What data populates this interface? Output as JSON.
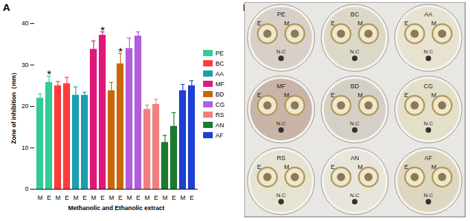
{
  "chart_data": {
    "type": "bar",
    "panel": "A",
    "xlabel": "Methanolic and Ethanolic extract",
    "ylabel": "Zone of inhibition（mm）",
    "categories": [
      "M",
      "E"
    ],
    "series": [
      {
        "name": "PE",
        "color": "#33cc99",
        "values": [
          22,
          25.8
        ],
        "errors": [
          1,
          1.5
        ]
      },
      {
        "name": "BC",
        "color": "#ff3b3b",
        "values": [
          25,
          25.5
        ],
        "errors": [
          1,
          1.5
        ]
      },
      {
        "name": "AA",
        "color": "#1a9fb0",
        "values": [
          22.7,
          22.7
        ],
        "errors": [
          2,
          0.7
        ]
      },
      {
        "name": "MF",
        "color": "#e0177a",
        "values": [
          33.8,
          37.2
        ],
        "errors": [
          2,
          0.8
        ]
      },
      {
        "name": "BD",
        "color": "#c8670a",
        "values": [
          23.8,
          30.3
        ],
        "errors": [
          2,
          2.5
        ]
      },
      {
        "name": "CG",
        "color": "#b45ddc",
        "values": [
          34,
          37
        ],
        "errors": [
          2.5,
          1
        ]
      },
      {
        "name": "RS",
        "color": "#f08080",
        "values": [
          19.3,
          20.5
        ],
        "errors": [
          1,
          1.2
        ]
      },
      {
        "name": "AN",
        "color": "#1a7a2e",
        "values": [
          11.3,
          15.2
        ],
        "errors": [
          1.7,
          3.3
        ]
      },
      {
        "name": "AF",
        "color": "#1e3fd6",
        "values": [
          23.8,
          25
        ],
        "errors": [
          1.5,
          1.2
        ]
      }
    ],
    "ylim": [
      0,
      40
    ],
    "yticks": [
      0,
      10,
      20,
      30,
      40
    ],
    "legend": "right",
    "annotations": [
      {
        "series": "PE",
        "category": "E",
        "text": "*"
      },
      {
        "series": "MF",
        "category": "E",
        "text": "*"
      },
      {
        "series": "BD",
        "category": "E",
        "text": "*"
      }
    ]
  },
  "plates": {
    "panel": "B",
    "items": [
      {
        "label": "PE",
        "disks": [
          "E",
          "M"
        ],
        "control": "N.C"
      },
      {
        "label": "BC",
        "disks": [
          "E",
          "M"
        ],
        "control": "N.C"
      },
      {
        "label": "AA",
        "disks": [
          "E",
          "M"
        ],
        "control": "N.C"
      },
      {
        "label": "MF",
        "disks": [
          "E",
          "M"
        ],
        "control": "N.C"
      },
      {
        "label": "BD",
        "disks": [
          "E",
          "M"
        ],
        "control": "N.C"
      },
      {
        "label": "CG",
        "disks": [
          "E",
          "M"
        ],
        "control": "N.C"
      },
      {
        "label": "RS",
        "disks": [
          "E",
          "M"
        ],
        "control": "N.C"
      },
      {
        "label": "AN",
        "disks": [
          "E",
          "M"
        ],
        "control": "N.C"
      },
      {
        "label": "AF",
        "disks": [
          "E",
          "M"
        ],
        "control": "N.C"
      }
    ]
  }
}
